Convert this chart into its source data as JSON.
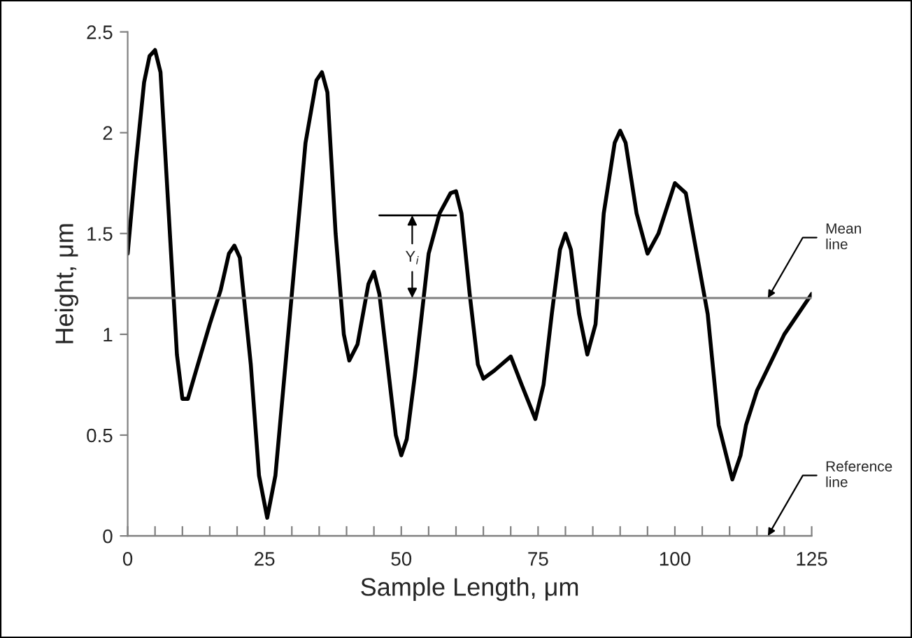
{
  "chart_data": {
    "type": "line",
    "xlabel": "Sample Length, μm",
    "ylabel": "Height, μm",
    "x": [
      0,
      1.5,
      3,
      4,
      5,
      6,
      7.5,
      9,
      10,
      11,
      12.5,
      15,
      17,
      18.5,
      19.5,
      20.5,
      22.5,
      24,
      25.5,
      27,
      30,
      32.5,
      34.5,
      35.5,
      36.5,
      38,
      39.5,
      40.5,
      42,
      44,
      45,
      46,
      47.5,
      49,
      50,
      51,
      52.5,
      55,
      57,
      59,
      60,
      61,
      62.5,
      64,
      65,
      67,
      70,
      72,
      74.5,
      76,
      77.5,
      79,
      80,
      81,
      82.5,
      84,
      85.5,
      87,
      89,
      90,
      91,
      93,
      95,
      97,
      100,
      102,
      103,
      106,
      108,
      110.5,
      112,
      113,
      115,
      120,
      125
    ],
    "series": [
      {
        "color": "#000000",
        "values": [
          1.4,
          1.85,
          2.25,
          2.38,
          2.41,
          2.3,
          1.6,
          0.9,
          0.68,
          0.68,
          0.82,
          1.05,
          1.22,
          1.4,
          1.44,
          1.38,
          0.85,
          0.3,
          0.09,
          0.3,
          1.2,
          1.95,
          2.26,
          2.3,
          2.2,
          1.5,
          1.0,
          0.87,
          0.95,
          1.25,
          1.31,
          1.2,
          0.85,
          0.5,
          0.4,
          0.48,
          0.8,
          1.4,
          1.6,
          1.7,
          1.71,
          1.6,
          1.2,
          0.85,
          0.78,
          0.82,
          0.89,
          0.75,
          0.58,
          0.75,
          1.1,
          1.42,
          1.5,
          1.42,
          1.1,
          0.9,
          1.05,
          1.6,
          1.95,
          2.01,
          1.95,
          1.6,
          1.4,
          1.5,
          1.75,
          1.7,
          1.55,
          1.1,
          0.55,
          0.28,
          0.4,
          0.55,
          0.72,
          1.0,
          1.2
        ]
      }
    ],
    "xlim": [
      0,
      125
    ],
    "ylim": [
      0,
      2.5
    ],
    "xticks": [
      0,
      {
        "value": 5,
        "label": null
      },
      {
        "value": 10,
        "label": null
      },
      {
        "value": 15,
        "label": null
      },
      {
        "value": 20,
        "label": null
      },
      25,
      {
        "value": 30,
        "label": null
      },
      {
        "value": 35,
        "label": null
      },
      {
        "value": 40,
        "label": null
      },
      {
        "value": 45,
        "label": null
      },
      50,
      {
        "value": 55,
        "label": null
      },
      {
        "value": 60,
        "label": null
      },
      {
        "value": 65,
        "label": null
      },
      {
        "value": 70,
        "label": null
      },
      75,
      {
        "value": 80,
        "label": null
      },
      {
        "value": 85,
        "label": null
      },
      {
        "value": 90,
        "label": null
      },
      {
        "value": 95,
        "label": null
      },
      100,
      {
        "value": 105,
        "label": null
      },
      {
        "value": 110,
        "label": null
      },
      {
        "value": 115,
        "label": null
      },
      {
        "value": 120,
        "label": null
      },
      125
    ],
    "yticks": [
      0,
      0.5,
      1,
      1.5,
      2,
      2.5
    ],
    "ref_lines": [
      {
        "axis": "y",
        "value": 1.18,
        "label": "Mean\nline",
        "color": "#808080"
      },
      {
        "axis": "y",
        "value": 0,
        "label": "Reference\nline",
        "color": "#808080"
      }
    ],
    "annotations": [
      {
        "text": "Y$_{i}$",
        "x": 52,
        "y": 1.38
      }
    ],
    "grid": false,
    "legend": false,
    "marker": "none",
    "line_style": "solid"
  }
}
